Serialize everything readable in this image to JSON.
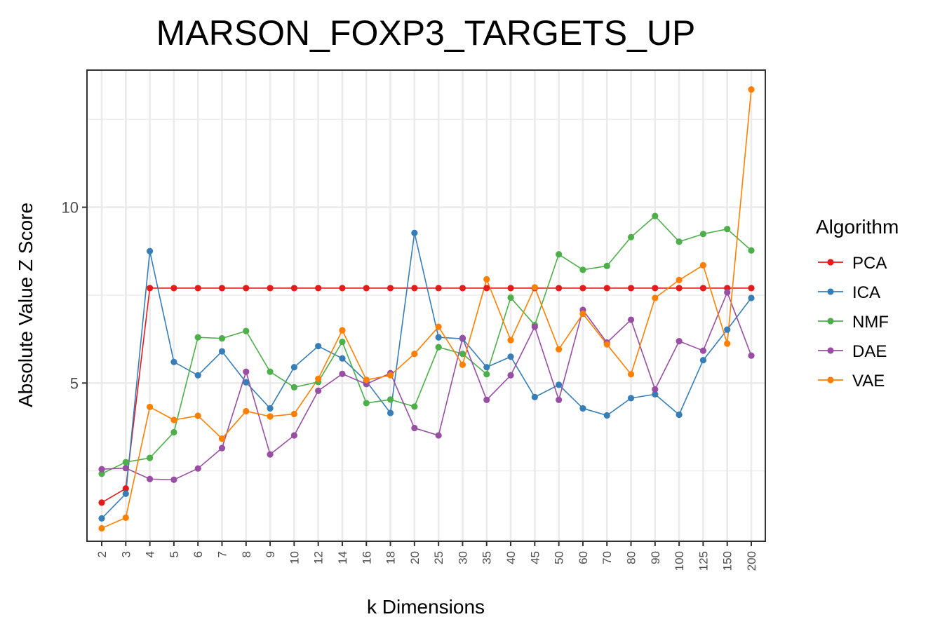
{
  "chart_data": {
    "type": "line",
    "title": "MARSON_FOXP3_TARGETS_UP",
    "xlabel": "k Dimensions",
    "ylabel": "Absolute Value Z Score",
    "categories": [
      "2",
      "3",
      "4",
      "5",
      "6",
      "7",
      "8",
      "9",
      "10",
      "12",
      "14",
      "16",
      "18",
      "20",
      "25",
      "30",
      "35",
      "40",
      "45",
      "50",
      "60",
      "70",
      "80",
      "90",
      "100",
      "125",
      "150",
      "200"
    ],
    "ylim": [
      0.5,
      13.9
    ],
    "yticks": [
      5,
      10
    ],
    "ytick_labels": [
      "5",
      "10"
    ],
    "grid": true,
    "legend": {
      "title": "Algorithm",
      "position": "right"
    },
    "series": [
      {
        "name": "PCA",
        "color": "#e41a1c",
        "values": [
          1.6,
          2.0,
          7.7,
          7.7,
          7.7,
          7.7,
          7.7,
          7.7,
          7.7,
          7.7,
          7.7,
          7.7,
          7.7,
          7.7,
          7.7,
          7.7,
          7.7,
          7.7,
          7.7,
          7.7,
          7.7,
          7.7,
          7.7,
          7.7,
          7.7,
          7.7,
          7.7,
          7.7
        ]
      },
      {
        "name": "ICA",
        "color": "#377eb8",
        "values": [
          1.15,
          1.85,
          8.75,
          5.6,
          5.22,
          5.9,
          5.02,
          4.28,
          5.45,
          6.05,
          5.7,
          5.05,
          4.15,
          9.27,
          6.3,
          6.26,
          5.45,
          5.75,
          4.6,
          4.95,
          4.28,
          4.08,
          4.57,
          4.68,
          4.1,
          5.65,
          6.52,
          7.42
        ]
      },
      {
        "name": "NMF",
        "color": "#4daf4a",
        "values": [
          2.42,
          2.75,
          2.87,
          3.6,
          6.3,
          6.27,
          6.48,
          5.32,
          4.88,
          5.03,
          6.17,
          4.43,
          4.53,
          4.33,
          6.02,
          5.83,
          5.25,
          7.43,
          6.65,
          8.66,
          8.22,
          8.33,
          9.15,
          9.75,
          9.02,
          9.24,
          9.38,
          8.77
        ]
      },
      {
        "name": "DAE",
        "color": "#984ea3",
        "values": [
          2.55,
          2.58,
          2.27,
          2.25,
          2.57,
          3.15,
          5.32,
          2.97,
          3.51,
          4.78,
          5.26,
          4.97,
          5.28,
          3.72,
          3.51,
          6.28,
          4.52,
          5.22,
          6.6,
          4.52,
          7.08,
          6.15,
          6.8,
          4.82,
          6.19,
          5.92,
          7.58,
          5.78
        ]
      },
      {
        "name": "VAE",
        "color": "#ff7f00",
        "values": [
          0.87,
          1.17,
          4.32,
          3.95,
          4.07,
          3.42,
          4.2,
          4.05,
          4.12,
          5.12,
          6.5,
          5.09,
          5.22,
          5.83,
          6.6,
          5.52,
          7.95,
          6.22,
          7.72,
          5.96,
          6.97,
          6.1,
          5.25,
          7.42,
          7.93,
          8.35,
          6.12,
          13.35
        ]
      }
    ]
  }
}
